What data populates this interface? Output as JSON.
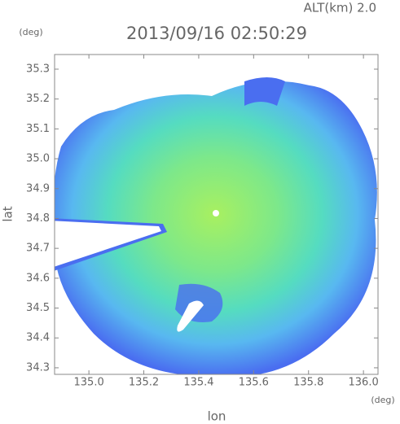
{
  "chart_data": {
    "type": "heatmap",
    "title": "2013/09/16 02:50:29",
    "subtitle": "ALT(km) 2.0",
    "y_unit": "(deg)",
    "x_unit": "(deg)",
    "x_label": "lon",
    "y_label": "lat",
    "xlim": [
      134.875,
      136.053
    ],
    "ylim": [
      34.278,
      35.349
    ],
    "xticks": [
      {
        "value": 135,
        "label": "135.0"
      },
      135.2,
      135.4,
      135.6,
      135.8,
      {
        "value": 136,
        "label": "136.0"
      }
    ],
    "yticks": [
      34.3,
      34.4,
      34.5,
      34.6,
      34.7,
      34.8,
      34.9,
      {
        "value": 35,
        "label": "35.0"
      },
      35.1,
      35.2,
      35.3
    ]
  }
}
